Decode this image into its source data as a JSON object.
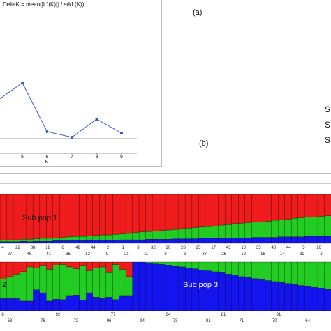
{
  "panel_labels": {
    "a": "(a)",
    "b": "(b)"
  },
  "right_legend_fragments": [
    "S",
    "S",
    "S"
  ],
  "colors": {
    "subpop1": "#ee1c1c",
    "subpop2": "#22cc22",
    "subpop3": "#1414ee",
    "line": "#3355cc",
    "tick": "#555555"
  },
  "chart_data": [
    {
      "type": "line",
      "title": "DeltaK = mean(|L''(K)|) / sd(L(K))",
      "xlabel": "K",
      "ylabel": "",
      "x": [
        4,
        5,
        6,
        7,
        8,
        9
      ],
      "x_ticks": [
        5,
        6,
        7,
        8,
        9
      ],
      "series": [
        {
          "values": [
            5.5,
            8.0,
            1.0,
            0.2,
            2.8,
            0.8
          ]
        }
      ],
      "xlim": [
        4,
        9.3
      ],
      "ylim": [
        0,
        18
      ],
      "grid": false
    },
    {
      "type": "bar",
      "stacked": true,
      "annotations": [
        "Sub pop 1",
        "2",
        "Sub pop 3"
      ],
      "rows": [
        {
          "series": [
            {
              "name": "",
              "values": [
                0.94,
                0.93,
                0.93,
                0.92,
                0.92,
                0.91,
                0.9,
                0.9,
                0.89,
                0.88,
                0.87,
                0.86,
                0.86,
                0.85,
                0.84,
                0.83,
                0.83,
                0.82,
                0.81,
                0.8,
                0.78,
                0.77,
                0.76,
                0.75,
                0.74,
                0.73,
                0.72,
                0.7,
                0.69,
                0.68,
                0.67,
                0.66,
                0.65,
                0.63,
                0.62,
                0.6,
                0.59,
                0.58,
                0.57,
                0.56,
                0.55,
                0.53,
                0.52,
                0.51,
                0.49,
                0.48,
                0.47,
                0.46,
                0.45,
                0.44
              ]
            },
            {
              "name": "",
              "values": [
                0.03,
                0.04,
                0.04,
                0.04,
                0.05,
                0.05,
                0.06,
                0.06,
                0.06,
                0.07,
                0.08,
                0.08,
                0.09,
                0.09,
                0.1,
                0.11,
                0.11,
                0.12,
                0.12,
                0.13,
                0.15,
                0.16,
                0.16,
                0.17,
                0.18,
                0.19,
                0.19,
                0.21,
                0.22,
                0.23,
                0.23,
                0.24,
                0.25,
                0.27,
                0.27,
                0.29,
                0.3,
                0.31,
                0.31,
                0.32,
                0.33,
                0.35,
                0.35,
                0.36,
                0.38,
                0.39,
                0.39,
                0.4,
                0.41,
                0.42
              ]
            },
            {
              "name": "",
              "values": [
                0.03,
                0.03,
                0.03,
                0.04,
                0.03,
                0.04,
                0.04,
                0.04,
                0.05,
                0.05,
                0.05,
                0.06,
                0.05,
                0.06,
                0.06,
                0.06,
                0.06,
                0.06,
                0.07,
                0.07,
                0.07,
                0.07,
                0.08,
                0.08,
                0.08,
                0.08,
                0.09,
                0.09,
                0.09,
                0.09,
                0.1,
                0.1,
                0.1,
                0.1,
                0.11,
                0.11,
                0.11,
                0.11,
                0.12,
                0.12,
                0.12,
                0.12,
                0.13,
                0.13,
                0.13,
                0.13,
                0.14,
                0.14,
                0.14,
                0.14
              ]
            }
          ],
          "tick_labels_top": [
            "4",
            "22",
            "38",
            "18",
            "6",
            "49",
            "44",
            "2",
            "1",
            "3",
            "32",
            "20",
            "28",
            "25",
            "17",
            "43",
            "10",
            "33",
            "48",
            "44",
            "3",
            "16"
          ],
          "tick_labels_bottom": [
            "27",
            "46",
            "41",
            "35",
            "12",
            "9",
            "21",
            "11",
            "8",
            "9",
            "37",
            "26",
            "12",
            "16",
            "14",
            "31",
            "2"
          ]
        },
        {
          "series": [
            {
              "name": "",
              "values": [
                0.35,
                0.3,
                0.25,
                0.2,
                0.1,
                0.12,
                0.08,
                0.15,
                0.06,
                0.05,
                0.1,
                0.14,
                0.08,
                0.18,
                0.12,
                0.1,
                0.22,
                0.05,
                0.15,
                0.3,
                0,
                0,
                0,
                0,
                0,
                0,
                0,
                0,
                0,
                0,
                0,
                0,
                0,
                0,
                0,
                0,
                0,
                0,
                0,
                0,
                0,
                0,
                0,
                0,
                0,
                0,
                0,
                0,
                0,
                0
              ]
            },
            {
              "name": "",
              "values": [
                0.4,
                0.45,
                0.5,
                0.6,
                0.7,
                0.45,
                0.55,
                0.65,
                0.7,
                0.72,
                0.6,
                0.55,
                0.7,
                0.45,
                0.6,
                0.65,
                0.5,
                0.72,
                0.55,
                0.4,
                0,
                0,
                0.02,
                0.04,
                0.05,
                0.07,
                0.09,
                0.1,
                0.12,
                0.14,
                0.16,
                0.18,
                0.2,
                0.22,
                0.25,
                0.27,
                0.3,
                0.32,
                0.34,
                0.36,
                0.38,
                0.4,
                0.42,
                0.44,
                0.46,
                0.48,
                0.5,
                0.52,
                0.54,
                0.56
              ]
            },
            {
              "name": "",
              "values": [
                0.25,
                0.25,
                0.25,
                0.2,
                0.2,
                0.43,
                0.37,
                0.2,
                0.24,
                0.23,
                0.3,
                0.31,
                0.22,
                0.37,
                0.28,
                0.25,
                0.28,
                0.23,
                0.3,
                0.3,
                1,
                1,
                0.98,
                0.96,
                0.95,
                0.93,
                0.91,
                0.9,
                0.88,
                0.86,
                0.84,
                0.82,
                0.8,
                0.78,
                0.75,
                0.73,
                0.7,
                0.68,
                0.66,
                0.64,
                0.62,
                0.6,
                0.58,
                0.56,
                0.54,
                0.52,
                0.5,
                0.48,
                0.46,
                0.44
              ]
            }
          ],
          "tick_labels_top": [
            "8",
            "92",
            "77",
            "94",
            "81",
            "91"
          ],
          "tick_labels_bottom": [
            "63",
            "76",
            "72",
            "96",
            "94",
            "73",
            "81",
            "71",
            "70",
            "64"
          ]
        }
      ]
    }
  ]
}
